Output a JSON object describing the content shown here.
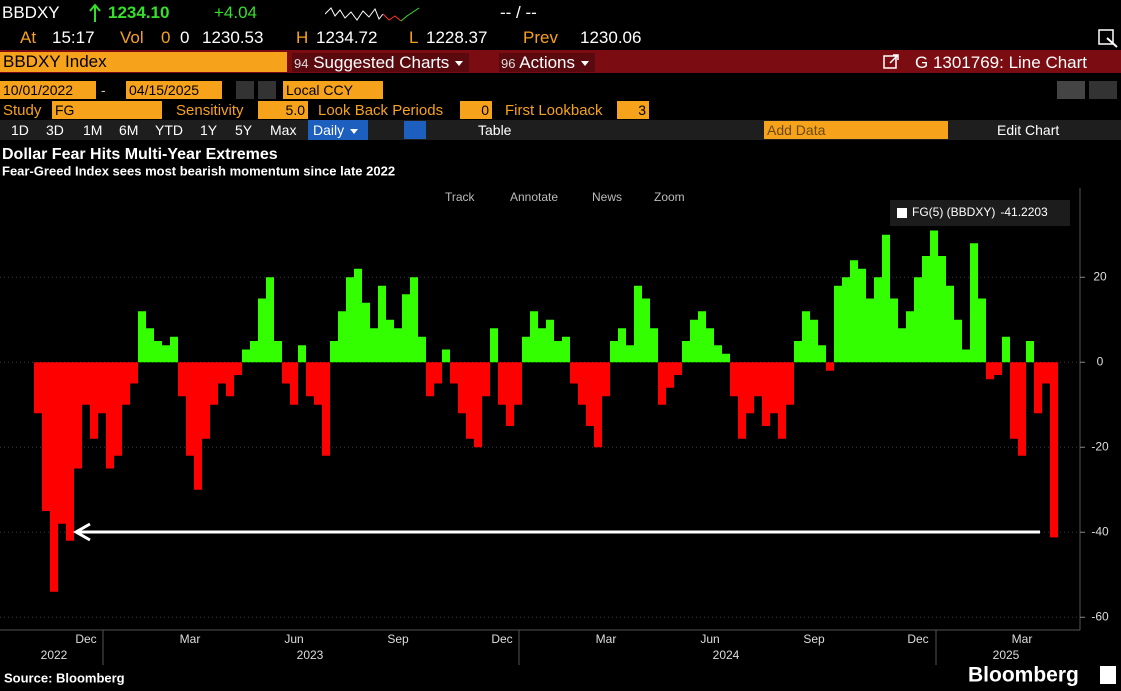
{
  "ticker_bar": {
    "ticker": "BBDXY",
    "last": "1234.10",
    "change": "+4.04",
    "bid_ask": "-- / --"
  },
  "quote_bar": {
    "at_label": "At",
    "time": "15:17",
    "vol_label": "Vol",
    "vol": "0",
    "vol2": "0",
    "open": "1230.53",
    "high_label": "H",
    "high": "1234.72",
    "low_label": "L",
    "low": "1228.37",
    "prev_label": "Prev",
    "prev": "1230.06"
  },
  "menu_bar": {
    "security": "BBDXY Index",
    "suggested_num": "94",
    "suggested": "Suggested Charts",
    "actions_num": "96",
    "actions": "Actions",
    "chart_id": "G 1301769: Line Chart"
  },
  "date_bar": {
    "start": "10/01/2022",
    "separator": "-",
    "end": "04/15/2025",
    "currency": "Local CCY"
  },
  "study_bar": {
    "study_label": "Study",
    "study": "FG",
    "sensitivity_label": "Sensitivity",
    "sensitivity": "5.0",
    "lookback_label": "Look Back Periods",
    "lookback": "0",
    "first_lookback_label": "First Lookback",
    "first_lookback": "3"
  },
  "range_bar": {
    "ranges": [
      "1D",
      "3D",
      "1M",
      "6M",
      "YTD",
      "1Y",
      "5Y",
      "Max"
    ],
    "frequency": "Daily",
    "table": "Table",
    "add_data": "Add Data",
    "edit_chart": "Edit Chart"
  },
  "chart_tools": [
    "Track",
    "Annotate",
    "News",
    "Zoom"
  ],
  "chart_data": {
    "type": "bar",
    "title": "Dollar Fear Hits Multi-Year Extremes",
    "subtitle": "Fear-Greed Index sees most bearish momentum since late 2022",
    "categories": [
      null,
      null,
      null,
      null,
      null,
      null,
      "Dec",
      null,
      null,
      null,
      null,
      null,
      null,
      null,
      null,
      null,
      null,
      null,
      null,
      "Mar",
      null,
      null,
      null,
      null,
      null,
      null,
      null,
      null,
      null,
      null,
      null,
      null,
      "Jun",
      null,
      null,
      null,
      null,
      null,
      null,
      null,
      null,
      null,
      null,
      null,
      null,
      "Sep",
      null,
      null,
      null,
      null,
      null,
      null,
      null,
      null,
      null,
      null,
      null,
      null,
      "Dec",
      null,
      null,
      null,
      null,
      null,
      null,
      null,
      null,
      null,
      null,
      null,
      null,
      "Mar",
      null,
      null,
      null,
      null,
      null,
      null,
      null,
      null,
      null,
      null,
      null,
      null,
      "Jun",
      null,
      null,
      null,
      null,
      null,
      null,
      null,
      null,
      null,
      null,
      null,
      null,
      "Sep",
      null,
      null,
      null,
      null,
      null,
      null,
      null,
      null,
      null,
      null,
      null,
      null,
      "Dec",
      null,
      null,
      null,
      null,
      null,
      null,
      null,
      null,
      null,
      null,
      null,
      null,
      "Mar",
      null,
      null,
      null,
      null
    ],
    "category_years": [
      null,
      null,
      "2022",
      null,
      null,
      null,
      null,
      null,
      null,
      null,
      null,
      null,
      null,
      null,
      null,
      null,
      null,
      null,
      null,
      null,
      null,
      null,
      null,
      null,
      null,
      null,
      null,
      null,
      null,
      null,
      null,
      null,
      null,
      null,
      "2023",
      null,
      null,
      null,
      null,
      null,
      null,
      null,
      null,
      null,
      null,
      null,
      null,
      null,
      null,
      null,
      null,
      null,
      null,
      null,
      null,
      null,
      null,
      null,
      null,
      null,
      null,
      null,
      null,
      null,
      null,
      null,
      null,
      null,
      null,
      null,
      null,
      null,
      null,
      null,
      null,
      null,
      null,
      null,
      null,
      null,
      null,
      null,
      null,
      null,
      null,
      null,
      "2024",
      null,
      null,
      null,
      null,
      null,
      null,
      null,
      null,
      null,
      null,
      null,
      null,
      null,
      null,
      null,
      null,
      null,
      null,
      null,
      null,
      null,
      null,
      null,
      null,
      null,
      null,
      null,
      null,
      null,
      null,
      null,
      null,
      null,
      null,
      "2025",
      null,
      null,
      null,
      null,
      null,
      null
    ],
    "series": [
      {
        "name": "FG(5) (BBDXY)",
        "color_positive": "#33ff00",
        "color_negative": "#ff0000",
        "values": [
          -12,
          -35,
          -54,
          -38,
          -42,
          -25,
          -10,
          -18,
          -12,
          -25,
          -22,
          -10,
          -5,
          12,
          8,
          5,
          4,
          6,
          -8,
          -22,
          -30,
          -18,
          -10,
          -5,
          -8,
          -3,
          3,
          5,
          15,
          20,
          5,
          -5,
          -10,
          4,
          -8,
          -10,
          -22,
          5,
          12,
          20,
          22,
          14,
          8,
          18,
          10,
          8,
          16,
          20,
          6,
          -8,
          -5,
          3,
          -5,
          -12,
          -18,
          -20,
          -8,
          8,
          -10,
          -15,
          -10,
          6,
          12,
          8,
          10,
          5,
          6,
          -5,
          -10,
          -15,
          -20,
          -8,
          5,
          8,
          4,
          18,
          15,
          8,
          -10,
          -6,
          -3,
          5,
          10,
          12,
          8,
          4,
          2,
          -8,
          -18,
          -12,
          -8,
          -15,
          -12,
          -18,
          -10,
          5,
          12,
          10,
          4,
          -2,
          18,
          20,
          24,
          22,
          15,
          20,
          30,
          15,
          8,
          12,
          20,
          25,
          31,
          25,
          18,
          10,
          3,
          28,
          15,
          -4,
          -3,
          6,
          -18,
          -22,
          5,
          -12,
          -5,
          -41.2203
        ]
      }
    ],
    "ylim": [
      -63,
      41
    ],
    "yticks": [
      -60,
      -40,
      -20,
      0,
      20
    ],
    "grid": true,
    "legend": "top-right"
  },
  "footer": {
    "source": "Source: Bloomberg",
    "brand": "Bloomberg"
  }
}
